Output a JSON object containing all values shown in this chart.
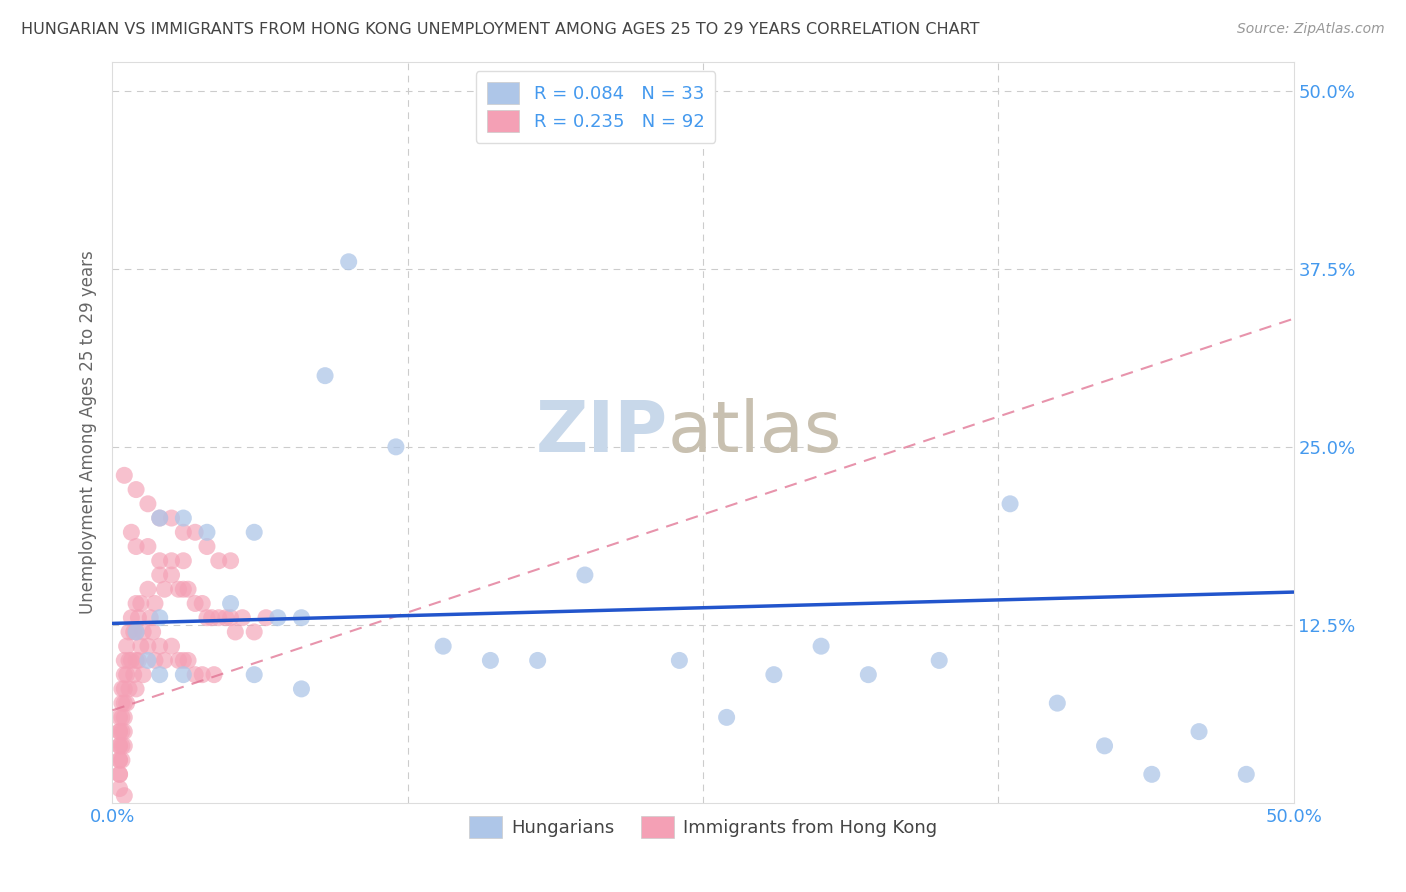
{
  "title": "HUNGARIAN VS IMMIGRANTS FROM HONG KONG UNEMPLOYMENT AMONG AGES 25 TO 29 YEARS CORRELATION CHART",
  "source": "Source: ZipAtlas.com",
  "ylabel": "Unemployment Among Ages 25 to 29 years",
  "hungarian_R": 0.084,
  "hungarian_N": 33,
  "hk_R": 0.235,
  "hk_N": 92,
  "hungarian_color": "#aec6e8",
  "hk_color": "#f4a0b5",
  "trend_hungarian_color": "#2255cc",
  "trend_hk_color": "#e07090",
  "background_color": "#ffffff",
  "watermark_zip_color": "#c8d8ea",
  "watermark_atlas_color": "#c8c0b0",
  "grid_color": "#cccccc",
  "title_color": "#444444",
  "axis_label_color": "#666666",
  "tick_label_color": "#4499ee",
  "xmin": 0.0,
  "xmax": 0.5,
  "ymin": 0.0,
  "ymax": 0.52,
  "hungarian_x": [
    0.01,
    0.015,
    0.02,
    0.02,
    0.03,
    0.04,
    0.05,
    0.06,
    0.07,
    0.08,
    0.09,
    0.1,
    0.12,
    0.14,
    0.16,
    0.18,
    0.2,
    0.24,
    0.26,
    0.28,
    0.3,
    0.32,
    0.35,
    0.38,
    0.4,
    0.42,
    0.44,
    0.46,
    0.48,
    0.02,
    0.03,
    0.06,
    0.08
  ],
  "hungarian_y": [
    0.12,
    0.1,
    0.2,
    0.13,
    0.2,
    0.19,
    0.14,
    0.19,
    0.13,
    0.13,
    0.3,
    0.38,
    0.25,
    0.11,
    0.1,
    0.1,
    0.16,
    0.1,
    0.06,
    0.09,
    0.11,
    0.09,
    0.1,
    0.21,
    0.07,
    0.04,
    0.02,
    0.05,
    0.02,
    0.09,
    0.09,
    0.09,
    0.08
  ],
  "hk_x": [
    0.003,
    0.003,
    0.003,
    0.003,
    0.003,
    0.003,
    0.003,
    0.003,
    0.003,
    0.003,
    0.004,
    0.004,
    0.004,
    0.004,
    0.004,
    0.004,
    0.005,
    0.005,
    0.005,
    0.005,
    0.005,
    0.005,
    0.005,
    0.006,
    0.006,
    0.006,
    0.007,
    0.007,
    0.007,
    0.008,
    0.008,
    0.009,
    0.009,
    0.01,
    0.01,
    0.01,
    0.01,
    0.011,
    0.011,
    0.012,
    0.012,
    0.013,
    0.013,
    0.015,
    0.015,
    0.016,
    0.017,
    0.018,
    0.018,
    0.02,
    0.02,
    0.022,
    0.022,
    0.025,
    0.025,
    0.028,
    0.028,
    0.03,
    0.03,
    0.032,
    0.032,
    0.035,
    0.035,
    0.038,
    0.038,
    0.04,
    0.042,
    0.043,
    0.045,
    0.048,
    0.05,
    0.052,
    0.055,
    0.06,
    0.065,
    0.008,
    0.01,
    0.015,
    0.02,
    0.025,
    0.03,
    0.005,
    0.01,
    0.015,
    0.02,
    0.025,
    0.03,
    0.035,
    0.04,
    0.045,
    0.05,
    0.005
  ],
  "hk_y": [
    0.06,
    0.05,
    0.05,
    0.04,
    0.04,
    0.03,
    0.03,
    0.02,
    0.02,
    0.01,
    0.08,
    0.07,
    0.06,
    0.05,
    0.04,
    0.03,
    0.1,
    0.09,
    0.08,
    0.07,
    0.06,
    0.05,
    0.04,
    0.11,
    0.09,
    0.07,
    0.12,
    0.1,
    0.08,
    0.13,
    0.1,
    0.12,
    0.09,
    0.14,
    0.12,
    0.1,
    0.08,
    0.13,
    0.1,
    0.14,
    0.11,
    0.12,
    0.09,
    0.15,
    0.11,
    0.13,
    0.12,
    0.14,
    0.1,
    0.16,
    0.11,
    0.15,
    0.1,
    0.16,
    0.11,
    0.15,
    0.1,
    0.15,
    0.1,
    0.15,
    0.1,
    0.14,
    0.09,
    0.14,
    0.09,
    0.13,
    0.13,
    0.09,
    0.13,
    0.13,
    0.13,
    0.12,
    0.13,
    0.12,
    0.13,
    0.19,
    0.18,
    0.18,
    0.17,
    0.17,
    0.17,
    0.23,
    0.22,
    0.21,
    0.2,
    0.2,
    0.19,
    0.19,
    0.18,
    0.17,
    0.17,
    0.005
  ]
}
